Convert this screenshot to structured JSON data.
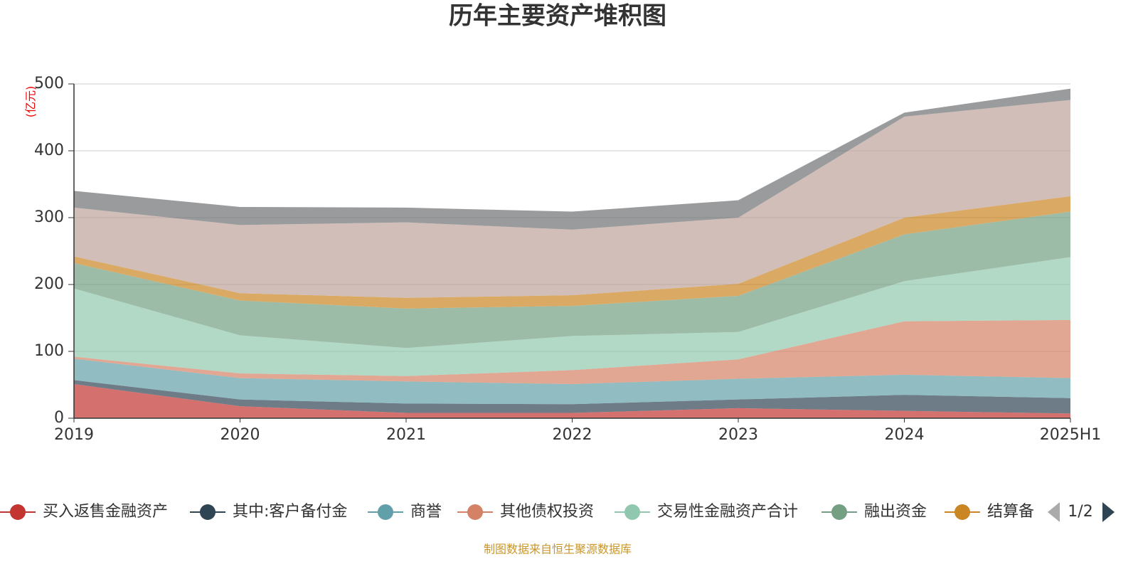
{
  "chart_data": {
    "type": "stacked_area",
    "title": "历年主要资产堆积图",
    "y_unit": "(亿元)",
    "categories": [
      "2019",
      "2020",
      "2021",
      "2022",
      "2023",
      "2024",
      "2025H1"
    ],
    "ylim": [
      0,
      500
    ],
    "yticks": [
      0,
      100,
      200,
      300,
      400,
      500
    ],
    "grid": true,
    "series": [
      {
        "name": "买入返售金融资产",
        "color": "#c23531",
        "values": [
          51,
          18,
          8,
          8,
          15,
          11,
          7
        ]
      },
      {
        "name": "其中:客户备付金",
        "color": "#2f4554",
        "values": [
          6,
          10,
          14,
          13,
          13,
          24,
          23
        ]
      },
      {
        "name": "商誉",
        "color": "#61a0a8",
        "values": [
          32,
          32,
          33,
          30,
          31,
          30,
          30
        ]
      },
      {
        "name": "其他债权投资",
        "color": "#d48265",
        "values": [
          3,
          7,
          8,
          21,
          29,
          80,
          87
        ]
      },
      {
        "name": "交易性金融资产合计",
        "color": "#91c7ae",
        "values": [
          102,
          57,
          42,
          51,
          41,
          60,
          94
        ]
      },
      {
        "name": "融出资金",
        "color": "#749f83",
        "values": [
          38,
          52,
          59,
          45,
          54,
          70,
          68
        ]
      },
      {
        "name": "结算备",
        "color": "#ca8622",
        "values": [
          10,
          11,
          16,
          16,
          18,
          25,
          23
        ]
      },
      {
        "color": "#bda29a",
        "values": [
          73,
          102,
          113,
          98,
          99,
          151,
          144
        ]
      },
      {
        "color": "#6e7074",
        "values": [
          25,
          27,
          22,
          27,
          26,
          6,
          17
        ]
      }
    ],
    "legend_page": "1/2",
    "source": "制图数据来自恒生聚源数据库"
  }
}
